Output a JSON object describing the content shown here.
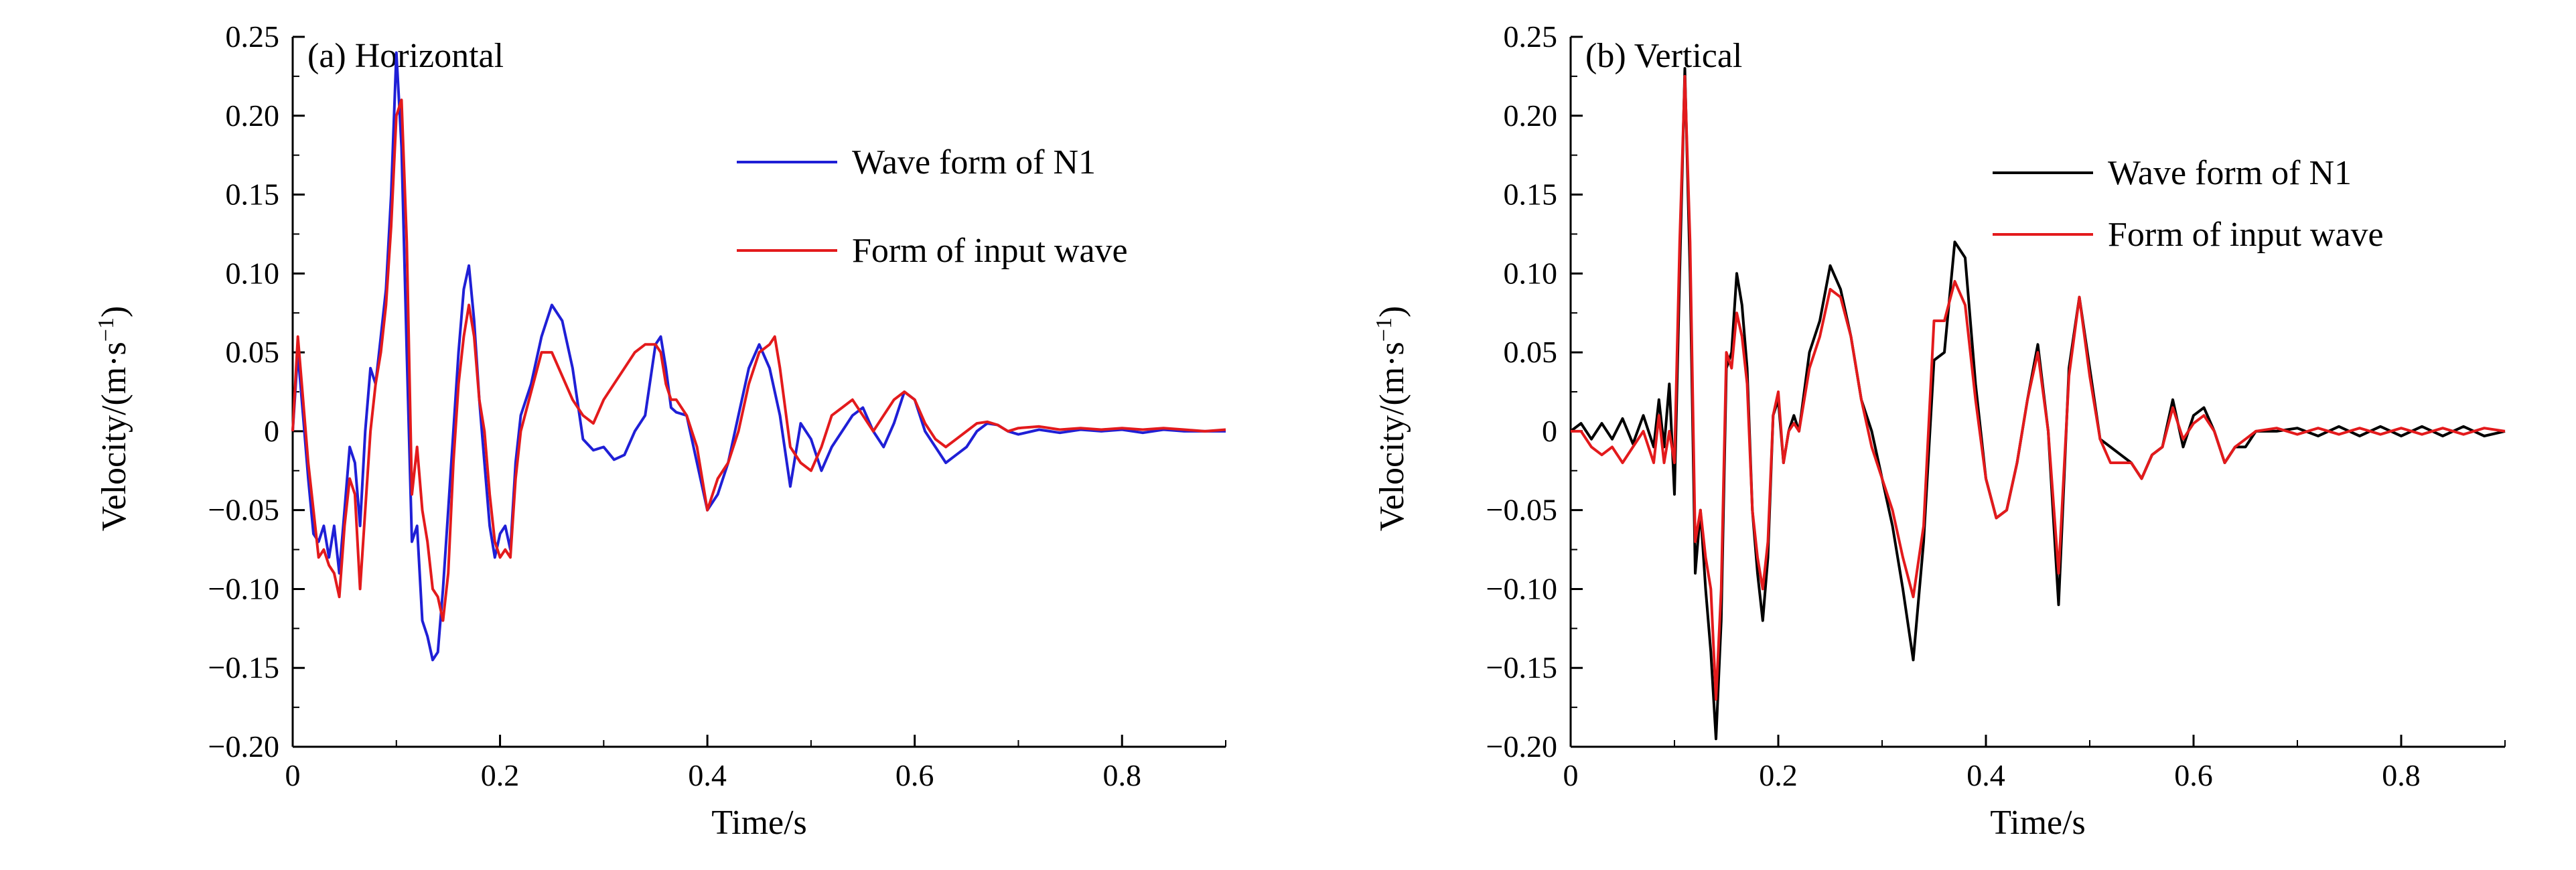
{
  "chart_data": [
    {
      "type": "line",
      "title": "(a) Horizontal",
      "xlabel": "Time/s",
      "ylabel": "Velocity/(m·s",
      "ylabel_sup": "−1",
      "ylabel_close": ")",
      "xlim": [
        0,
        0.9
      ],
      "ylim": [
        -0.2,
        0.25
      ],
      "xticks": [
        0,
        0.2,
        0.4,
        0.6,
        0.8
      ],
      "xtick_labels": [
        "0",
        "0.2",
        "0.4",
        "0.6",
        "0.8"
      ],
      "yticks": [
        -0.2,
        -0.15,
        -0.1,
        -0.05,
        0,
        0.05,
        0.1,
        0.15,
        0.2,
        0.25
      ],
      "ytick_labels": [
        "−0.20",
        "−0.15",
        "−0.10",
        "−0.05",
        "0",
        "0.05",
        "0.10",
        "0.15",
        "0.20",
        "0.25"
      ],
      "grid": false,
      "legend_position": "top-right",
      "series": [
        {
          "name": "Wave form of N1",
          "color": "#1f1fd6",
          "x": [
            0,
            0.005,
            0.01,
            0.015,
            0.02,
            0.025,
            0.03,
            0.035,
            0.04,
            0.045,
            0.05,
            0.055,
            0.06,
            0.065,
            0.07,
            0.075,
            0.08,
            0.085,
            0.09,
            0.095,
            0.1,
            0.105,
            0.11,
            0.115,
            0.12,
            0.125,
            0.13,
            0.135,
            0.14,
            0.145,
            0.15,
            0.155,
            0.16,
            0.165,
            0.17,
            0.175,
            0.18,
            0.185,
            0.19,
            0.195,
            0.2,
            0.205,
            0.21,
            0.215,
            0.22,
            0.23,
            0.24,
            0.25,
            0.26,
            0.27,
            0.28,
            0.29,
            0.3,
            0.31,
            0.32,
            0.33,
            0.34,
            0.35,
            0.355,
            0.36,
            0.365,
            0.37,
            0.38,
            0.39,
            0.4,
            0.41,
            0.42,
            0.43,
            0.44,
            0.45,
            0.46,
            0.47,
            0.48,
            0.49,
            0.5,
            0.51,
            0.52,
            0.53,
            0.54,
            0.55,
            0.56,
            0.57,
            0.58,
            0.59,
            0.6,
            0.61,
            0.62,
            0.63,
            0.64,
            0.65,
            0.66,
            0.67,
            0.68,
            0.69,
            0.7,
            0.72,
            0.74,
            0.76,
            0.78,
            0.8,
            0.82,
            0.84,
            0.86,
            0.88,
            0.9
          ],
          "y": [
            0,
            0.05,
            0.01,
            -0.03,
            -0.065,
            -0.07,
            -0.06,
            -0.08,
            -0.06,
            -0.09,
            -0.05,
            -0.01,
            -0.02,
            -0.06,
            0.0,
            0.04,
            0.03,
            0.06,
            0.09,
            0.15,
            0.24,
            0.18,
            0.05,
            -0.07,
            -0.06,
            -0.12,
            -0.13,
            -0.145,
            -0.14,
            -0.1,
            -0.05,
            0.0,
            0.05,
            0.09,
            0.105,
            0.07,
            0.02,
            -0.02,
            -0.06,
            -0.08,
            -0.065,
            -0.06,
            -0.075,
            -0.02,
            0.01,
            0.03,
            0.06,
            0.08,
            0.07,
            0.04,
            -0.005,
            -0.012,
            -0.01,
            -0.018,
            -0.015,
            0.0,
            0.01,
            0.055,
            0.06,
            0.04,
            0.015,
            0.012,
            0.01,
            -0.02,
            -0.05,
            -0.04,
            -0.02,
            0.01,
            0.04,
            0.055,
            0.04,
            0.01,
            -0.035,
            0.005,
            -0.005,
            -0.025,
            -0.01,
            0.0,
            0.01,
            0.015,
            0.0,
            -0.01,
            0.005,
            0.025,
            0.02,
            0.0,
            -0.01,
            -0.02,
            -0.015,
            -0.01,
            0.0,
            0.005,
            0.004,
            0.0,
            -0.002,
            0.001,
            -0.001,
            0.001,
            0.0,
            0.001,
            -0.001,
            0.001,
            0.0,
            0.0,
            0.0
          ]
        },
        {
          "name": "Form of input wave",
          "color": "#e31a1c",
          "x": [
            0,
            0.005,
            0.01,
            0.015,
            0.02,
            0.025,
            0.03,
            0.035,
            0.04,
            0.045,
            0.05,
            0.055,
            0.06,
            0.065,
            0.07,
            0.075,
            0.08,
            0.085,
            0.09,
            0.095,
            0.1,
            0.105,
            0.11,
            0.115,
            0.12,
            0.125,
            0.13,
            0.135,
            0.14,
            0.145,
            0.15,
            0.155,
            0.16,
            0.165,
            0.17,
            0.175,
            0.18,
            0.185,
            0.19,
            0.195,
            0.2,
            0.205,
            0.21,
            0.215,
            0.22,
            0.23,
            0.24,
            0.25,
            0.26,
            0.27,
            0.28,
            0.29,
            0.3,
            0.31,
            0.32,
            0.33,
            0.34,
            0.35,
            0.355,
            0.36,
            0.365,
            0.37,
            0.38,
            0.39,
            0.4,
            0.41,
            0.42,
            0.43,
            0.44,
            0.45,
            0.46,
            0.465,
            0.47,
            0.48,
            0.49,
            0.5,
            0.51,
            0.52,
            0.53,
            0.54,
            0.55,
            0.56,
            0.57,
            0.58,
            0.59,
            0.6,
            0.61,
            0.62,
            0.63,
            0.64,
            0.65,
            0.66,
            0.67,
            0.68,
            0.69,
            0.7,
            0.72,
            0.74,
            0.76,
            0.78,
            0.8,
            0.82,
            0.84,
            0.86,
            0.88,
            0.9
          ],
          "y": [
            0,
            0.06,
            0.02,
            -0.02,
            -0.05,
            -0.08,
            -0.075,
            -0.085,
            -0.09,
            -0.105,
            -0.06,
            -0.03,
            -0.04,
            -0.1,
            -0.05,
            0.0,
            0.03,
            0.05,
            0.08,
            0.13,
            0.2,
            0.21,
            0.12,
            -0.04,
            -0.01,
            -0.05,
            -0.07,
            -0.1,
            -0.105,
            -0.12,
            -0.09,
            -0.02,
            0.03,
            0.06,
            0.08,
            0.06,
            0.02,
            0.0,
            -0.04,
            -0.07,
            -0.08,
            -0.075,
            -0.08,
            -0.03,
            0.0,
            0.025,
            0.05,
            0.05,
            0.035,
            0.02,
            0.01,
            0.005,
            0.02,
            0.03,
            0.04,
            0.05,
            0.055,
            0.055,
            0.05,
            0.03,
            0.02,
            0.02,
            0.01,
            -0.01,
            -0.05,
            -0.03,
            -0.02,
            0.0,
            0.03,
            0.05,
            0.055,
            0.06,
            0.04,
            -0.01,
            -0.02,
            -0.025,
            -0.01,
            0.01,
            0.015,
            0.02,
            0.01,
            0.0,
            0.01,
            0.02,
            0.025,
            0.02,
            0.005,
            -0.005,
            -0.01,
            -0.005,
            0.0,
            0.005,
            0.006,
            0.004,
            0.0,
            0.002,
            0.003,
            0.001,
            0.002,
            0.001,
            0.002,
            0.001,
            0.002,
            0.001,
            0.0,
            0.001
          ]
        }
      ]
    },
    {
      "type": "line",
      "title": "(b) Vertical",
      "xlabel": "Time/s",
      "ylabel": "Velocity/(m·s",
      "ylabel_sup": "−1",
      "ylabel_close": ")",
      "xlim": [
        0,
        0.9
      ],
      "ylim": [
        -0.2,
        0.25
      ],
      "xticks": [
        0,
        0.2,
        0.4,
        0.6,
        0.8
      ],
      "xtick_labels": [
        "0",
        "0.2",
        "0.4",
        "0.6",
        "0.8"
      ],
      "yticks": [
        -0.2,
        -0.15,
        -0.1,
        -0.05,
        0,
        0.05,
        0.1,
        0.15,
        0.2,
        0.25
      ],
      "ytick_labels": [
        "−0.20",
        "−0.15",
        "−0.10",
        "−0.05",
        "0",
        "0.05",
        "0.10",
        "0.15",
        "0.20",
        "0.25"
      ],
      "grid": false,
      "legend_position": "top-right",
      "series": [
        {
          "name": "Wave form of N1",
          "color": "#000000",
          "x": [
            0,
            0.01,
            0.02,
            0.03,
            0.04,
            0.05,
            0.06,
            0.07,
            0.08,
            0.085,
            0.09,
            0.095,
            0.1,
            0.105,
            0.11,
            0.115,
            0.12,
            0.125,
            0.13,
            0.135,
            0.14,
            0.145,
            0.15,
            0.155,
            0.16,
            0.165,
            0.17,
            0.175,
            0.18,
            0.185,
            0.19,
            0.195,
            0.2,
            0.205,
            0.21,
            0.215,
            0.22,
            0.23,
            0.24,
            0.25,
            0.26,
            0.27,
            0.28,
            0.29,
            0.3,
            0.31,
            0.32,
            0.33,
            0.34,
            0.35,
            0.36,
            0.37,
            0.38,
            0.39,
            0.4,
            0.41,
            0.42,
            0.43,
            0.44,
            0.45,
            0.46,
            0.47,
            0.48,
            0.49,
            0.5,
            0.51,
            0.52,
            0.53,
            0.54,
            0.55,
            0.56,
            0.57,
            0.58,
            0.59,
            0.6,
            0.61,
            0.62,
            0.63,
            0.64,
            0.65,
            0.66,
            0.68,
            0.7,
            0.72,
            0.74,
            0.76,
            0.78,
            0.8,
            0.82,
            0.84,
            0.86,
            0.88,
            0.9
          ],
          "y": [
            0,
            0.005,
            -0.005,
            0.005,
            -0.005,
            0.008,
            -0.008,
            0.01,
            -0.01,
            0.02,
            -0.01,
            0.03,
            -0.04,
            0.1,
            0.23,
            0.1,
            -0.09,
            -0.05,
            -0.1,
            -0.14,
            -0.195,
            -0.12,
            0.04,
            0.05,
            0.1,
            0.08,
            0.04,
            -0.05,
            -0.09,
            -0.12,
            -0.08,
            0.01,
            0.02,
            -0.02,
            0.0,
            0.01,
            0.0,
            0.05,
            0.07,
            0.105,
            0.09,
            0.06,
            0.02,
            0.0,
            -0.03,
            -0.06,
            -0.1,
            -0.145,
            -0.07,
            0.045,
            0.05,
            0.12,
            0.11,
            0.03,
            -0.03,
            -0.055,
            -0.05,
            -0.02,
            0.02,
            0.055,
            0.0,
            -0.11,
            0.04,
            0.085,
            0.04,
            -0.005,
            -0.01,
            -0.015,
            -0.02,
            -0.03,
            -0.015,
            -0.01,
            0.02,
            -0.01,
            0.01,
            0.015,
            0.0,
            -0.02,
            -0.01,
            -0.01,
            0.0,
            0.0,
            0.002,
            -0.003,
            0.003,
            -0.003,
            0.003,
            -0.003,
            0.003,
            -0.003,
            0.003,
            -0.003,
            0.0
          ]
        },
        {
          "name": "Form of input wave",
          "color": "#e31a1c",
          "x": [
            0,
            0.01,
            0.02,
            0.03,
            0.04,
            0.05,
            0.06,
            0.07,
            0.08,
            0.085,
            0.09,
            0.095,
            0.1,
            0.105,
            0.11,
            0.115,
            0.12,
            0.125,
            0.13,
            0.135,
            0.14,
            0.145,
            0.15,
            0.155,
            0.16,
            0.165,
            0.17,
            0.175,
            0.18,
            0.185,
            0.19,
            0.195,
            0.2,
            0.205,
            0.21,
            0.215,
            0.22,
            0.23,
            0.24,
            0.25,
            0.26,
            0.27,
            0.28,
            0.29,
            0.3,
            0.31,
            0.32,
            0.33,
            0.34,
            0.35,
            0.36,
            0.37,
            0.38,
            0.39,
            0.4,
            0.41,
            0.42,
            0.43,
            0.44,
            0.45,
            0.46,
            0.47,
            0.48,
            0.49,
            0.5,
            0.51,
            0.52,
            0.53,
            0.54,
            0.55,
            0.56,
            0.57,
            0.58,
            0.59,
            0.6,
            0.61,
            0.62,
            0.63,
            0.64,
            0.65,
            0.66,
            0.68,
            0.7,
            0.72,
            0.74,
            0.76,
            0.78,
            0.8,
            0.82,
            0.84,
            0.86,
            0.88,
            0.9
          ],
          "y": [
            0,
            0.0,
            -0.01,
            -0.015,
            -0.01,
            -0.02,
            -0.01,
            0.0,
            -0.02,
            0.01,
            -0.02,
            0.0,
            -0.02,
            0.12,
            0.225,
            0.12,
            -0.07,
            -0.05,
            -0.08,
            -0.1,
            -0.17,
            -0.1,
            0.05,
            0.04,
            0.075,
            0.06,
            0.03,
            -0.05,
            -0.08,
            -0.1,
            -0.07,
            0.01,
            0.025,
            -0.02,
            0.0,
            0.005,
            0.0,
            0.04,
            0.06,
            0.09,
            0.085,
            0.06,
            0.02,
            -0.01,
            -0.03,
            -0.05,
            -0.08,
            -0.105,
            -0.06,
            0.07,
            0.07,
            0.095,
            0.08,
            0.02,
            -0.03,
            -0.055,
            -0.05,
            -0.02,
            0.02,
            0.05,
            0.0,
            -0.09,
            0.035,
            0.085,
            0.035,
            -0.005,
            -0.02,
            -0.02,
            -0.02,
            -0.03,
            -0.015,
            -0.01,
            0.015,
            -0.005,
            0.005,
            0.01,
            0.0,
            -0.02,
            -0.01,
            -0.005,
            0.0,
            0.002,
            -0.002,
            0.002,
            -0.002,
            0.002,
            -0.002,
            0.002,
            -0.002,
            0.002,
            -0.002,
            0.002,
            0.0
          ]
        }
      ]
    }
  ]
}
